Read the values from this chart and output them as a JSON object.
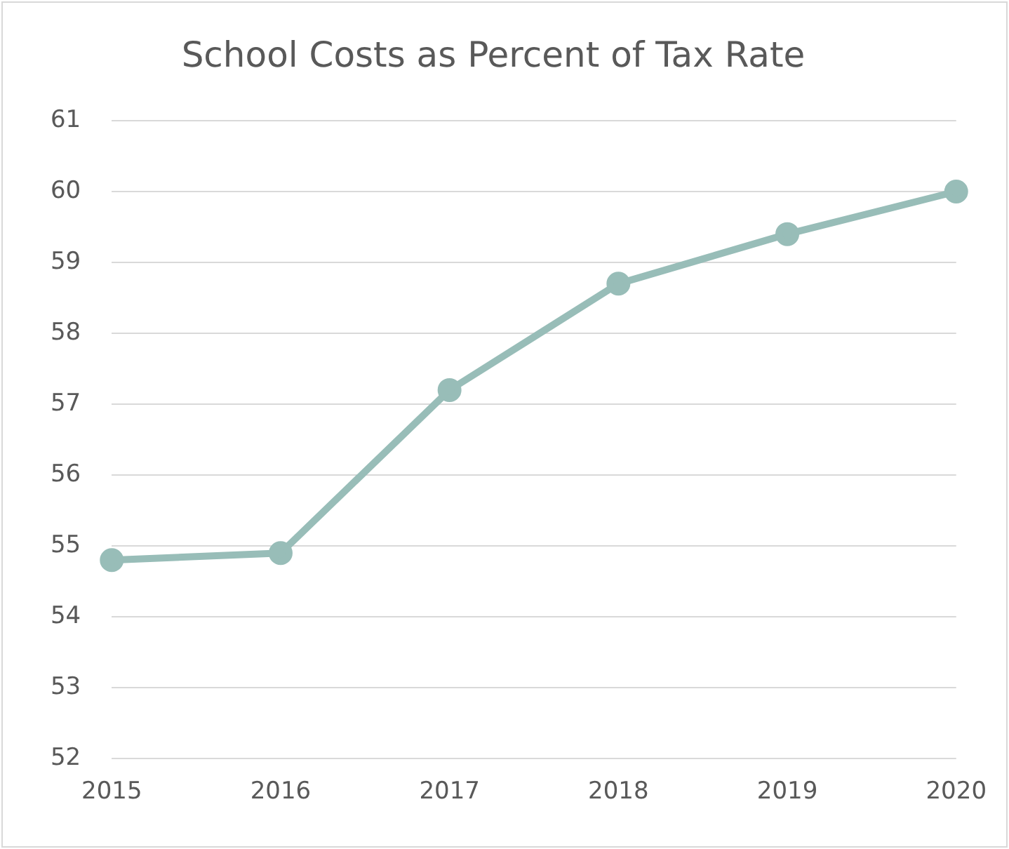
{
  "chart_data": {
    "type": "line",
    "title": "School Costs as Percent of Tax Rate",
    "categories": [
      "2015",
      "2016",
      "2017",
      "2018",
      "2019",
      "2020"
    ],
    "series": [
      {
        "color": "#98bdb8",
        "values": [
          54.8,
          54.9,
          57.2,
          58.7,
          59.4,
          60.0
        ]
      }
    ],
    "ylim": [
      52,
      61
    ],
    "yticks": [
      52,
      53,
      54,
      55,
      56,
      57,
      58,
      59,
      60,
      61
    ],
    "grid": "y",
    "marker": "circle"
  }
}
